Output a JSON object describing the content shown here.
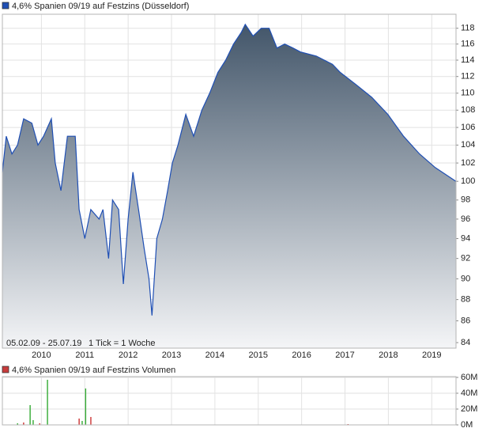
{
  "chart_data": [
    {
      "type": "area",
      "title": "4,6% Spanien 09/19 auf Festzins (Düsseldorf)",
      "date_range": "05.02.09 - 25.07.19",
      "tick_info": "1 Tick = 1 Woche",
      "color": "#1f4fb4",
      "fill_top": "#43566a",
      "fill_bottom": "#f4f5f7",
      "x": [
        2009.1,
        2009.19,
        2009.32,
        2009.45,
        2009.59,
        2009.78,
        2009.92,
        2010.05,
        2010.23,
        2010.32,
        2010.45,
        2010.6,
        2010.78,
        2010.87,
        2011.0,
        2011.14,
        2011.33,
        2011.42,
        2011.55,
        2011.64,
        2011.78,
        2011.89,
        2012.0,
        2012.11,
        2012.24,
        2012.37,
        2012.48,
        2012.55,
        2012.66,
        2012.79,
        2012.91,
        2013.02,
        2013.15,
        2013.33,
        2013.51,
        2013.7,
        2013.88,
        2014.07,
        2014.25,
        2014.43,
        2014.61,
        2014.7,
        2014.88,
        2015.07,
        2015.25,
        2015.43,
        2015.61,
        2015.8,
        2015.98,
        2016.34,
        2016.71,
        2016.89,
        2017.26,
        2017.62,
        2017.99,
        2018.35,
        2018.72,
        2019.08,
        2019.56
      ],
      "values": [
        101,
        105,
        103,
        104,
        107,
        106.5,
        104,
        105,
        107,
        102,
        99,
        105,
        105,
        97,
        94,
        97,
        96,
        97,
        92,
        98,
        97,
        89.5,
        96,
        101,
        97,
        93,
        90,
        86.5,
        94,
        96,
        99,
        102,
        104,
        107.5,
        105,
        108,
        110,
        112.5,
        114,
        116,
        117.5,
        118.5,
        117,
        118,
        118,
        115.5,
        116,
        115.5,
        115,
        114.5,
        113.5,
        112.5,
        111,
        109.5,
        107.5,
        105,
        103,
        101.5,
        100
      ],
      "xlim": [
        2009.1,
        2019.56
      ],
      "ylim": [
        83.5,
        119.8
      ],
      "log_scale": true,
      "grid": true,
      "xticks": [
        2010,
        2011,
        2012,
        2013,
        2014,
        2015,
        2016,
        2017,
        2018,
        2019
      ],
      "yticks": [
        84,
        86,
        88,
        90,
        92,
        94,
        96,
        98,
        100,
        102,
        104,
        106,
        108,
        110,
        112,
        114,
        116,
        118
      ]
    },
    {
      "type": "bar",
      "title": "4,6% Spanien 09/19 auf Festzins Volumen",
      "legend_color": "#c83c3c",
      "x": [
        2009.45,
        2009.59,
        2009.74,
        2009.81,
        2009.96,
        2010.14,
        2010.87,
        2010.94,
        2011.02,
        2011.14,
        2017.07
      ],
      "values": [
        2000000,
        3000000,
        25000000,
        6000000,
        2000000,
        57000000,
        8000000,
        5000000,
        46000000,
        10000000,
        1000000
      ],
      "colors": [
        "#33aa33",
        "#cc3333",
        "#33aa33",
        "#33aa33",
        "#cc3333",
        "#33aa33",
        "#cc3333",
        "#33aa33",
        "#33aa33",
        "#cc3333",
        "#cc3333"
      ],
      "xlim": [
        2009.1,
        2019.56
      ],
      "ylim": [
        0,
        61000000
      ],
      "grid": true,
      "yticks": [
        {
          "value": 0,
          "label": "0M"
        },
        {
          "value": 20000000,
          "label": "20M"
        },
        {
          "value": 40000000,
          "label": "40M"
        },
        {
          "value": 60000000,
          "label": "60M"
        }
      ]
    }
  ]
}
